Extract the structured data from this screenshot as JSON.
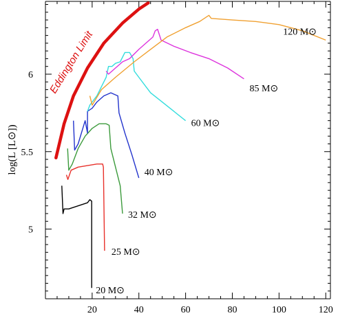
{
  "chart_data": {
    "type": "line",
    "title": "",
    "xlabel": "",
    "ylabel": "log(L [L⊙])",
    "xlim": [
      0,
      122
    ],
    "ylim": [
      4.55,
      6.47
    ],
    "x_ticks": [
      20,
      40,
      60,
      80,
      100,
      120
    ],
    "y_ticks": [
      5,
      5.5,
      6
    ],
    "x_tick_labels": [
      "20",
      "40",
      "60",
      "80",
      "100",
      "120"
    ],
    "y_tick_labels": [
      "5",
      "5.5",
      "6"
    ],
    "grid": false,
    "legend": "none",
    "series": [
      {
        "name": "20 M⊙",
        "color": "#000000",
        "points": [
          [
            7.0,
            5.28
          ],
          [
            7.5,
            5.1
          ],
          [
            8.0,
            5.13
          ],
          [
            10.0,
            5.13
          ],
          [
            14.0,
            5.15
          ],
          [
            18.0,
            5.17
          ],
          [
            19.0,
            5.19
          ],
          [
            19.8,
            5.18
          ],
          [
            19.8,
            4.62
          ]
        ]
      },
      {
        "name": "25 M⊙",
        "color": "#e8302a",
        "points": [
          [
            9.0,
            5.35
          ],
          [
            9.6,
            5.32
          ],
          [
            11.0,
            5.38
          ],
          [
            14.0,
            5.4
          ],
          [
            18.0,
            5.41
          ],
          [
            22.0,
            5.42
          ],
          [
            24.5,
            5.42
          ],
          [
            24.8,
            5.4
          ],
          [
            25.3,
            4.86
          ]
        ]
      },
      {
        "name": "32 M⊙",
        "color": "#3b9a3b",
        "points": [
          [
            9.5,
            5.52
          ],
          [
            10.0,
            5.38
          ],
          [
            11.5,
            5.42
          ],
          [
            14.0,
            5.52
          ],
          [
            17.0,
            5.6
          ],
          [
            20.0,
            5.65
          ],
          [
            23.0,
            5.68
          ],
          [
            26.0,
            5.68
          ],
          [
            27.3,
            5.67
          ],
          [
            28.0,
            5.52
          ],
          [
            30.0,
            5.4
          ],
          [
            32.0,
            5.28
          ],
          [
            33.0,
            5.1
          ]
        ]
      },
      {
        "name": "40 M⊙",
        "color": "#2233cc",
        "points": [
          [
            12.0,
            5.7
          ],
          [
            12.5,
            5.51
          ],
          [
            14.0,
            5.55
          ],
          [
            17.0,
            5.7
          ],
          [
            18.0,
            5.62
          ],
          [
            18.0,
            5.76
          ],
          [
            20.0,
            5.78
          ],
          [
            22.0,
            5.82
          ],
          [
            25.0,
            5.86
          ],
          [
            28.0,
            5.88
          ],
          [
            31.0,
            5.86
          ],
          [
            31.5,
            5.75
          ],
          [
            34.0,
            5.62
          ],
          [
            37.0,
            5.48
          ],
          [
            40.0,
            5.33
          ]
        ]
      },
      {
        "name": "60 M⊙",
        "color": "#33dddd",
        "points": [
          [
            18.0,
            5.76
          ],
          [
            19.0,
            5.8
          ],
          [
            22.0,
            5.86
          ],
          [
            25.0,
            5.95
          ],
          [
            26.0,
            5.98
          ],
          [
            27.0,
            6.05
          ],
          [
            28.5,
            6.05
          ],
          [
            30.0,
            6.07
          ],
          [
            32.0,
            6.08
          ],
          [
            34.0,
            6.14
          ],
          [
            36.0,
            6.14
          ],
          [
            37.5,
            6.1
          ],
          [
            38.0,
            6.02
          ],
          [
            40.0,
            5.98
          ],
          [
            45.0,
            5.88
          ],
          [
            50.0,
            5.82
          ],
          [
            55.0,
            5.76
          ],
          [
            60.0,
            5.7
          ]
        ]
      },
      {
        "name": "85 M⊙",
        "color": "#dd33dd",
        "points": [
          [
            26.0,
            6.02
          ],
          [
            27.0,
            6.0
          ],
          [
            30.0,
            6.04
          ],
          [
            33.0,
            6.08
          ],
          [
            36.0,
            6.1
          ],
          [
            40.0,
            6.16
          ],
          [
            43.0,
            6.2
          ],
          [
            46.0,
            6.24
          ],
          [
            47.0,
            6.28
          ],
          [
            48.0,
            6.29
          ],
          [
            49.5,
            6.22
          ],
          [
            55.0,
            6.18
          ],
          [
            62.0,
            6.14
          ],
          [
            70.0,
            6.1
          ],
          [
            78.0,
            6.04
          ],
          [
            85.0,
            5.97
          ]
        ]
      },
      {
        "name": "120 M⊙",
        "color": "#f0a030",
        "points": [
          [
            19.0,
            5.86
          ],
          [
            20.0,
            5.8
          ],
          [
            24.0,
            5.9
          ],
          [
            30.0,
            5.98
          ],
          [
            38.0,
            6.08
          ],
          [
            45.0,
            6.16
          ],
          [
            52.0,
            6.24
          ],
          [
            60.0,
            6.3
          ],
          [
            66.0,
            6.34
          ],
          [
            70.0,
            6.38
          ],
          [
            71.0,
            6.36
          ],
          [
            80.0,
            6.35
          ],
          [
            90.0,
            6.34
          ],
          [
            100.0,
            6.32
          ],
          [
            110.0,
            6.28
          ],
          [
            120.0,
            6.22
          ]
        ]
      }
    ],
    "annotations": [
      {
        "text": "Eddington Limit",
        "color": "#dd1111",
        "points": [
          [
            4.5,
            5.46
          ],
          [
            8.0,
            5.68
          ],
          [
            12.0,
            5.86
          ],
          [
            18.0,
            6.04
          ],
          [
            25.0,
            6.2
          ],
          [
            33.0,
            6.33
          ],
          [
            40.0,
            6.42
          ],
          [
            44.0,
            6.46
          ]
        ]
      }
    ]
  }
}
